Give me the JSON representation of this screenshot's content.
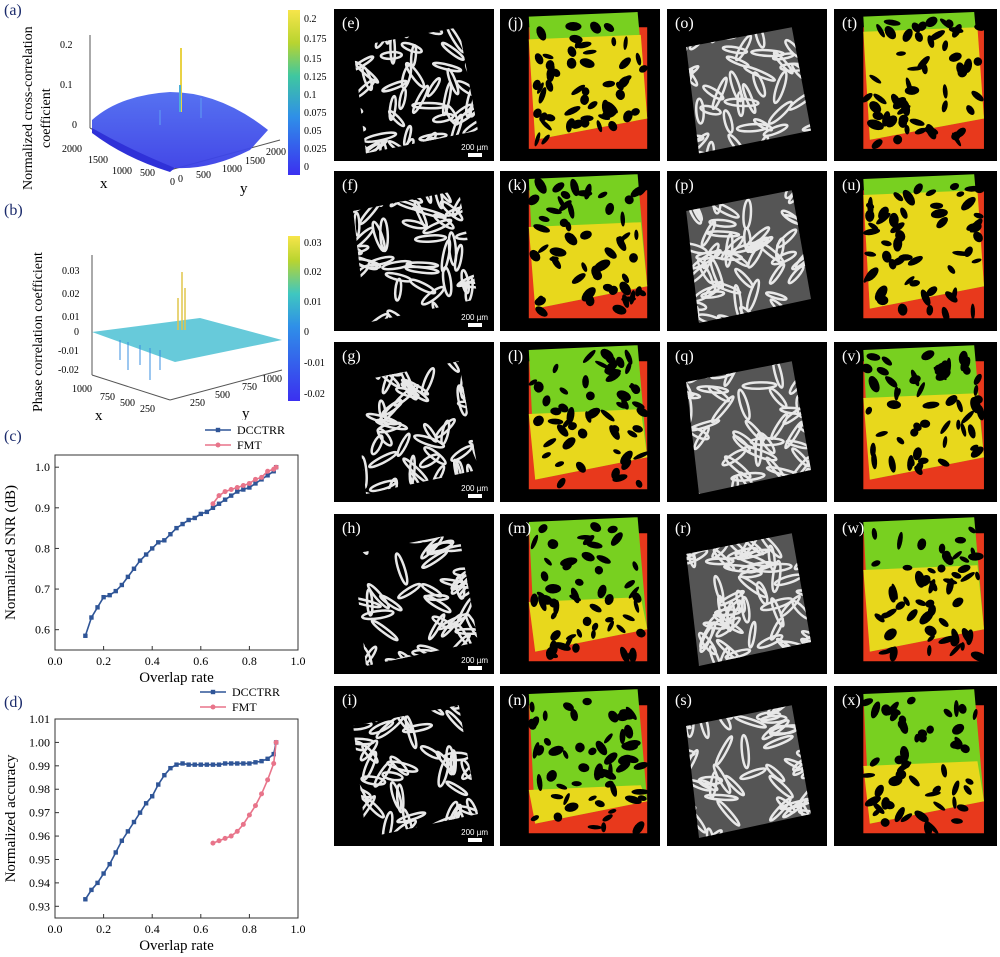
{
  "panels": {
    "a": {
      "label": "(a)",
      "zlabel_l1": "Normalized cross-correlation",
      "zlabel_l2": "coefficient",
      "x_axis": "x",
      "y_axis": "y",
      "z_ticks": [
        "0.2",
        "0.1",
        "0"
      ],
      "x_ticks": [
        "2000",
        "1500",
        "1000",
        "500",
        "0"
      ],
      "y_ticks": [
        "0",
        "500",
        "1000",
        "1500",
        "2000"
      ],
      "colorbar_ticks": [
        "0.2",
        "0.175",
        "0.15",
        "0.125",
        "0.1",
        "0.075",
        "0.05",
        "0.025",
        "0"
      ]
    },
    "b": {
      "label": "(b)",
      "zlabel": "Phase correlation coefficient",
      "x_axis": "x",
      "y_axis": "y",
      "z_ticks": [
        "0.03",
        "0.02",
        "0.01",
        "0",
        "-0.01",
        "-0.02"
      ],
      "x_ticks": [
        "1000",
        "750",
        "500",
        "250"
      ],
      "y_ticks": [
        "250",
        "500",
        "750",
        "1000"
      ],
      "colorbar_ticks": [
        "0.03",
        "0.02",
        "0.01",
        "0",
        "-0.01",
        "-0.02"
      ]
    },
    "c": {
      "label": "(c)"
    },
    "d": {
      "label": "(d)"
    }
  },
  "chart_data": [
    {
      "type": "line",
      "panel": "c",
      "xlabel": "Overlap rate",
      "ylabel": "Normalized SNR (dB)",
      "xlim": [
        0.0,
        1.0
      ],
      "ylim": [
        0.55,
        1.03
      ],
      "x_ticks": [
        "0.0",
        "0.2",
        "0.4",
        "0.6",
        "0.8",
        "1.0"
      ],
      "y_ticks": [
        "0.6",
        "0.7",
        "0.8",
        "0.9",
        "1.0"
      ],
      "legend_position": "top-right",
      "series": [
        {
          "name": "DCCTRR",
          "color": "#2f5597",
          "x": [
            0.125,
            0.15,
            0.175,
            0.2,
            0.225,
            0.25,
            0.275,
            0.3,
            0.325,
            0.35,
            0.375,
            0.4,
            0.425,
            0.45,
            0.475,
            0.5,
            0.525,
            0.55,
            0.575,
            0.6,
            0.625,
            0.65,
            0.675,
            0.7,
            0.725,
            0.75,
            0.775,
            0.8,
            0.825,
            0.85,
            0.875,
            0.9,
            0.91
          ],
          "y": [
            0.585,
            0.63,
            0.655,
            0.68,
            0.685,
            0.695,
            0.71,
            0.73,
            0.75,
            0.77,
            0.785,
            0.8,
            0.815,
            0.82,
            0.835,
            0.85,
            0.86,
            0.87,
            0.875,
            0.885,
            0.89,
            0.9,
            0.91,
            0.92,
            0.93,
            0.94,
            0.945,
            0.95,
            0.96,
            0.97,
            0.98,
            0.99,
            1.0
          ]
        },
        {
          "name": "FMT",
          "color": "#e8748a",
          "x": [
            0.65,
            0.675,
            0.7,
            0.725,
            0.75,
            0.775,
            0.8,
            0.825,
            0.85,
            0.875,
            0.9,
            0.91
          ],
          "y": [
            0.91,
            0.93,
            0.94,
            0.945,
            0.95,
            0.955,
            0.96,
            0.97,
            0.975,
            0.99,
            0.995,
            1.0
          ]
        }
      ]
    },
    {
      "type": "line",
      "panel": "d",
      "xlabel": "Overlap rate",
      "ylabel": "Normalized accuracy",
      "xlim": [
        0.0,
        1.0
      ],
      "ylim": [
        0.925,
        1.01
      ],
      "x_ticks": [
        "0.0",
        "0.2",
        "0.4",
        "0.6",
        "0.8",
        "1.0"
      ],
      "y_ticks": [
        "0.93",
        "0.94",
        "0.95",
        "0.96",
        "0.97",
        "0.98",
        "0.99",
        "1.00",
        "1.01"
      ],
      "legend_position": "top-right",
      "series": [
        {
          "name": "DCCTRR",
          "color": "#2f5597",
          "x": [
            0.125,
            0.15,
            0.175,
            0.2,
            0.225,
            0.25,
            0.275,
            0.3,
            0.325,
            0.35,
            0.375,
            0.4,
            0.425,
            0.45,
            0.475,
            0.5,
            0.525,
            0.55,
            0.575,
            0.6,
            0.625,
            0.65,
            0.675,
            0.7,
            0.725,
            0.75,
            0.775,
            0.8,
            0.825,
            0.85,
            0.875,
            0.9,
            0.91
          ],
          "y": [
            0.933,
            0.937,
            0.94,
            0.944,
            0.948,
            0.953,
            0.958,
            0.962,
            0.966,
            0.97,
            0.974,
            0.977,
            0.982,
            0.986,
            0.989,
            0.9905,
            0.991,
            0.9905,
            0.9905,
            0.9905,
            0.9905,
            0.9905,
            0.9905,
            0.991,
            0.991,
            0.991,
            0.991,
            0.991,
            0.9915,
            0.992,
            0.993,
            0.995,
            1.0
          ]
        },
        {
          "name": "FMT",
          "color": "#e8748a",
          "x": [
            0.65,
            0.675,
            0.7,
            0.725,
            0.75,
            0.775,
            0.8,
            0.825,
            0.85,
            0.875,
            0.9,
            0.91
          ],
          "y": [
            0.957,
            0.958,
            0.959,
            0.96,
            0.962,
            0.965,
            0.969,
            0.973,
            0.978,
            0.984,
            0.991,
            1.0
          ]
        }
      ]
    }
  ],
  "tiles": [
    {
      "label": "(e)",
      "style": "gray",
      "scale": "200 µm"
    },
    {
      "label": "(j)",
      "style": "rg-full"
    },
    {
      "label": "(o)",
      "style": "gray-soft"
    },
    {
      "label": "(t)",
      "style": "big"
    },
    {
      "label": "(f)",
      "style": "gray",
      "scale": "200 µm"
    },
    {
      "label": "(k)",
      "style": "rg-mid"
    },
    {
      "label": "(p)",
      "style": "gray-soft"
    },
    {
      "label": "(u)",
      "style": "big"
    },
    {
      "label": "(g)",
      "style": "gray",
      "scale": "200 µm"
    },
    {
      "label": "(l)",
      "style": "rg-low"
    },
    {
      "label": "(q)",
      "style": "gray-soft"
    },
    {
      "label": "(v)",
      "style": "big-low"
    },
    {
      "label": "(h)",
      "style": "gray",
      "scale": "200 µm"
    },
    {
      "label": "(m)",
      "style": "rg-lower"
    },
    {
      "label": "(r)",
      "style": "gray-soft"
    },
    {
      "label": "(w)",
      "style": "big-low"
    },
    {
      "label": "(i)",
      "style": "gray",
      "scale": "200 µm"
    },
    {
      "label": "(n)",
      "style": "rg-lowest"
    },
    {
      "label": "(s)",
      "style": "gray-soft"
    },
    {
      "label": "(x)",
      "style": "big-lowest"
    }
  ]
}
